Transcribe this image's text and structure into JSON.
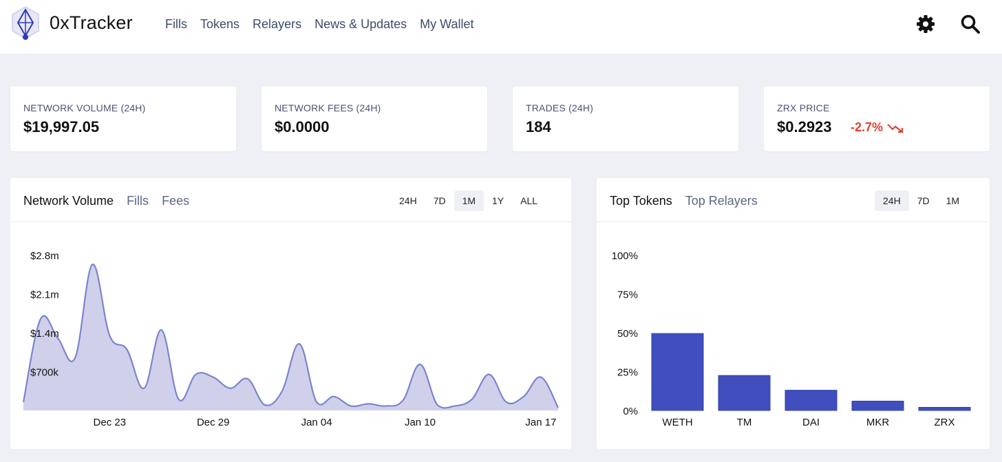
{
  "app": {
    "name": "0xTracker"
  },
  "nav": {
    "items": [
      "Fills",
      "Tokens",
      "Relayers",
      "News & Updates",
      "My Wallet"
    ]
  },
  "icons": {
    "logo": "0x-tracker-logo-icon",
    "settings": "gear-icon",
    "search": "search-icon",
    "trend_down": "trend-down-icon"
  },
  "stats": [
    {
      "label": "NETWORK VOLUME (24H)",
      "value": "$19,997.05"
    },
    {
      "label": "NETWORK FEES (24H)",
      "value": "$0.0000"
    },
    {
      "label": "TRADES (24H)",
      "value": "184"
    },
    {
      "label": "ZRX PRICE",
      "value": "$0.2923",
      "change": "-2.7%"
    }
  ],
  "volume_panel": {
    "tabs": [
      "Network Volume",
      "Fills",
      "Fees"
    ],
    "active_tab": "Network Volume",
    "periods": [
      "24H",
      "7D",
      "1M",
      "1Y",
      "ALL"
    ],
    "active_period": "1M"
  },
  "tokens_panel": {
    "tabs": [
      "Top Tokens",
      "Top Relayers"
    ],
    "active_tab": "Top Tokens",
    "periods": [
      "24H",
      "7D",
      "1M"
    ],
    "active_period": "24H"
  },
  "colors": {
    "accent": "#404fbd",
    "area_fill": "#d0d0eb",
    "area_line": "#7a83cf",
    "negative": "#e0412f"
  },
  "chart_data": [
    {
      "type": "area",
      "ylabel": "",
      "xlabel": "",
      "ylim": [
        0,
        2800000
      ],
      "y_ticks": [
        "$2.8m",
        "$2.1m",
        "$1.4m",
        "$700k"
      ],
      "y_tick_values": [
        2800000,
        2100000,
        1400000,
        700000
      ],
      "x_ticks": [
        "Dec 23",
        "Dec 29",
        "Jan 04",
        "Jan 10",
        "Jan 17"
      ],
      "x_tick_index": [
        5,
        11,
        17,
        23,
        30
      ],
      "x_range": [
        0,
        31
      ],
      "grid": false,
      "series": [
        {
          "values": [
            [
              0,
              150000
            ],
            [
              1,
              1650000
            ],
            [
              2,
              1300000
            ],
            [
              3,
              950000
            ],
            [
              4,
              2630000
            ],
            [
              5,
              1350000
            ],
            [
              6,
              1100000
            ],
            [
              7,
              400000
            ],
            [
              8,
              1450000
            ],
            [
              9,
              200000
            ],
            [
              10,
              650000
            ],
            [
              11,
              600000
            ],
            [
              12,
              400000
            ],
            [
              13,
              570000
            ],
            [
              14,
              100000
            ],
            [
              15,
              350000
            ],
            [
              16,
              1200000
            ],
            [
              17,
              150000
            ],
            [
              18,
              250000
            ],
            [
              19,
              80000
            ],
            [
              20,
              120000
            ],
            [
              21,
              80000
            ],
            [
              22,
              180000
            ],
            [
              23,
              830000
            ],
            [
              24,
              100000
            ],
            [
              25,
              80000
            ],
            [
              26,
              200000
            ],
            [
              27,
              650000
            ],
            [
              28,
              150000
            ],
            [
              29,
              250000
            ],
            [
              30,
              600000
            ],
            [
              31,
              50000
            ]
          ]
        }
      ]
    },
    {
      "type": "bar",
      "categories": [
        "WETH",
        "TM",
        "DAI",
        "MKR",
        "ZRX"
      ],
      "values": [
        49.5,
        22.5,
        13,
        6,
        2
      ],
      "ylim": [
        0,
        100
      ],
      "y_ticks": [
        "100%",
        "75%",
        "50%",
        "25%",
        "0%"
      ],
      "y_tick_values": [
        100,
        75,
        50,
        25,
        0
      ],
      "grid": false
    }
  ]
}
